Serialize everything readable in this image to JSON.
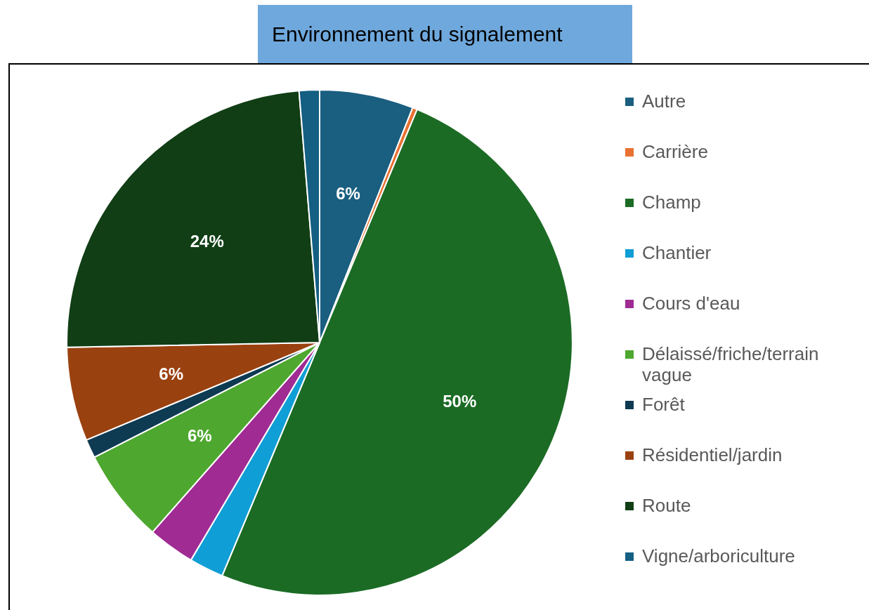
{
  "chart_data": {
    "type": "pie",
    "title": "Environnement du signalement",
    "categories": [
      "Autre",
      "Carrière",
      "Champ",
      "Chantier",
      "Cours d'eau",
      "Délaissé/friche/terrain vague",
      "Forêt",
      "Résidentiel/jardin",
      "Route",
      "Vigne/arboriculture"
    ],
    "values": [
      6,
      0.3,
      50,
      2.2,
      3,
      6,
      1.2,
      6,
      24,
      1.3
    ],
    "colors": [
      "#1a5e80",
      "#e97132",
      "#1b6b24",
      "#0f9ed5",
      "#a02b93",
      "#4ea72e",
      "#0e3a52",
      "#9a4110",
      "#113e15",
      "#145f82"
    ],
    "value_labels": [
      "6%",
      null,
      "50%",
      null,
      null,
      "6%",
      null,
      "6%",
      "24%",
      null
    ],
    "legend": "right"
  }
}
